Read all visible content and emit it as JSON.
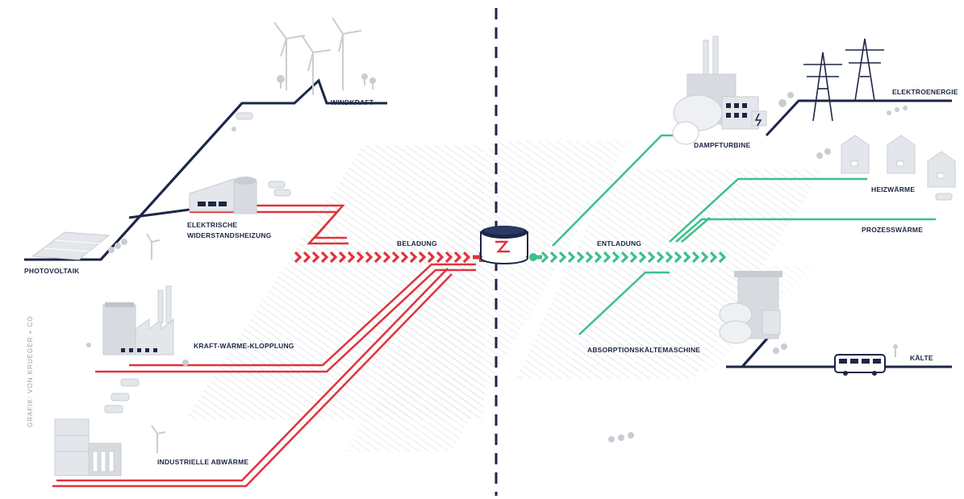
{
  "labels": {
    "windkraft": "WINDKRAFT",
    "elektrische_1": "ELEKTRISCHE",
    "elektrische_2": "WIDERSTANDSHEIZUNG",
    "photovoltaik": "PHOTOVOLTAIK",
    "kwk": "KRAFT-WÄRME-KLOPPLUNG",
    "abwaerme": "INDUSTRIELLE ABWÄRME",
    "beladung": "BELADUNG",
    "entladung": "ENTLADUNG",
    "dampfturbine": "DAMPFTURBINE",
    "elektroenergie": "ELEKTROENERGIE",
    "heizwaerme": "HEIZWÄRME",
    "prozesswaerme": "PROZESSWÄRME",
    "absorption": "ABSORPTIONSKÄLTEMASCHINE",
    "kaelte": "KÄLTE"
  },
  "credit": "GRAFIK: VON KRUEGER + CO",
  "colors": {
    "navy": "#1c2646",
    "red": "#e0333c",
    "green": "#3dbf8a",
    "hatch": "#d9dde2",
    "icon": "#c9cdd3"
  }
}
